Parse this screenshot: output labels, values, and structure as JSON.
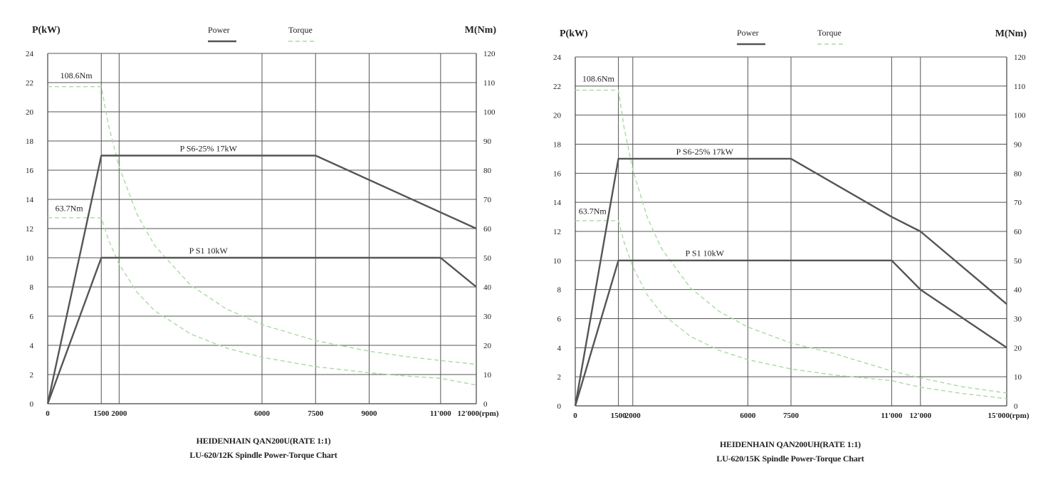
{
  "chart_data": [
    {
      "type": "line",
      "title": "HEIDENHAIN QAN200U(RATE 1:1)",
      "subtitle": "LU-620/12K Spindle Power-Torque Chart",
      "ylabel_left": "P(kW)",
      "ylabel_right": "M(Nm)",
      "xunit": "(rpm)",
      "legend": [
        {
          "name": "Power",
          "style": "solid",
          "color": "#555555"
        },
        {
          "name": "Torque",
          "style": "dashed",
          "color": "#a8dca0"
        }
      ],
      "legend_position": "top-center",
      "grid": true,
      "xlim": [
        0,
        12000
      ],
      "ylim_left": [
        0,
        24
      ],
      "ylim_right": [
        0,
        120
      ],
      "x_ticks": [
        0,
        1500,
        2000,
        6000,
        7500,
        9000,
        11000,
        12000
      ],
      "x_tick_labels": [
        "0",
        "1500",
        "2000",
        "6000",
        "7500",
        "9000",
        "11'000",
        "12'000"
      ],
      "y_left_ticks": [
        0,
        2,
        4,
        6,
        8,
        10,
        12,
        14,
        16,
        18,
        20,
        22,
        24
      ],
      "y_right_ticks": [
        0,
        10,
        20,
        30,
        40,
        50,
        60,
        70,
        80,
        90,
        100,
        110,
        120
      ],
      "power_series": [
        {
          "name": "P S6-25% 17kW",
          "x": [
            0,
            1500,
            7500,
            12000
          ],
          "y": [
            0,
            17,
            17,
            12
          ]
        },
        {
          "name": "P S1 10kW",
          "x": [
            0,
            1500,
            11000,
            12000
          ],
          "y": [
            0,
            10,
            10,
            8
          ]
        }
      ],
      "torque_series": [
        {
          "name": "108.6Nm",
          "x": [
            0,
            1500,
            1700,
            2000,
            2500,
            3000,
            4000,
            5000,
            6000,
            7500,
            9000,
            10000,
            11000,
            12000
          ],
          "y": [
            108.6,
            108.6,
            95.5,
            81.2,
            64.9,
            54.1,
            40.6,
            32.5,
            27.1,
            21.6,
            18,
            16.2,
            14.8,
            13.5
          ]
        },
        {
          "name": "63.7Nm",
          "x": [
            0,
            1500,
            1700,
            2000,
            2500,
            3000,
            4000,
            5000,
            6000,
            7500,
            9000,
            10000,
            11000,
            12000
          ],
          "y": [
            63.7,
            63.7,
            56.2,
            47.8,
            38.2,
            31.8,
            23.9,
            19.1,
            15.9,
            12.7,
            10.6,
            9.5,
            8.7,
            6.4
          ]
        }
      ],
      "annotations": [
        {
          "text": "P S6-25% 17kW",
          "x": 4500,
          "y": 17.3
        },
        {
          "text": "P S1 10kW",
          "x": 4500,
          "y": 10.3
        },
        {
          "text": "108.6Nm",
          "x": 800,
          "y": 22.3
        },
        {
          "text": "63.7Nm",
          "x": 600,
          "y": 13.2
        }
      ]
    },
    {
      "type": "line",
      "title": "HEIDENHAIN QAN200UH(RATE 1:1)",
      "subtitle": "LU-620/15K Spindle Power-Torque Chart",
      "ylabel_left": "P(kW)",
      "ylabel_right": "M(Nm)",
      "xunit": "(rpm)",
      "legend": [
        {
          "name": "Power",
          "style": "solid",
          "color": "#555555"
        },
        {
          "name": "Torque",
          "style": "dashed",
          "color": "#a8dca0"
        }
      ],
      "legend_position": "top-center",
      "grid": true,
      "xlim": [
        0,
        15000
      ],
      "ylim_left": [
        0,
        24
      ],
      "ylim_right": [
        0,
        120
      ],
      "x_ticks": [
        0,
        1500,
        2000,
        6000,
        7500,
        11000,
        12000,
        15000
      ],
      "x_tick_labels": [
        "0",
        "1500",
        "2000",
        "6000",
        "7500",
        "11'000",
        "12'000",
        "15'000"
      ],
      "y_left_ticks": [
        0,
        2,
        4,
        6,
        8,
        10,
        12,
        14,
        16,
        18,
        20,
        22,
        24
      ],
      "y_right_ticks": [
        0,
        10,
        20,
        30,
        40,
        50,
        60,
        70,
        80,
        90,
        100,
        110,
        120
      ],
      "power_series": [
        {
          "name": "P S6-25% 17kW",
          "x": [
            0,
            1500,
            7500,
            11000,
            12000,
            15000
          ],
          "y": [
            0,
            17,
            17,
            13,
            12,
            7
          ]
        },
        {
          "name": "P S1 10kW",
          "x": [
            0,
            1500,
            11000,
            12000,
            15000
          ],
          "y": [
            0,
            10,
            10,
            8,
            4
          ]
        }
      ],
      "torque_series": [
        {
          "name": "108.6Nm",
          "x": [
            0,
            1500,
            1700,
            2000,
            2500,
            3000,
            4000,
            5000,
            6000,
            7500,
            9000,
            11000,
            12000,
            13500,
            15000
          ],
          "y": [
            108.6,
            108.6,
            95.5,
            81.2,
            64.9,
            54.1,
            40.6,
            32.5,
            27.1,
            21.6,
            18,
            12,
            9.6,
            6.5,
            4.4
          ]
        },
        {
          "name": "63.7Nm",
          "x": [
            0,
            1500,
            1700,
            2000,
            2500,
            3000,
            4000,
            5000,
            6000,
            7500,
            9000,
            11000,
            12000,
            13500,
            15000
          ],
          "y": [
            63.7,
            63.7,
            56.2,
            47.8,
            38.2,
            31.8,
            23.9,
            19.1,
            15.9,
            12.7,
            10.6,
            8.7,
            6.4,
            4.2,
            2.5
          ]
        }
      ],
      "annotations": [
        {
          "text": "P S6-25% 17kW",
          "x": 4500,
          "y": 17.3
        },
        {
          "text": "P S1 10kW",
          "x": 4500,
          "y": 10.3
        },
        {
          "text": "108.6Nm",
          "x": 800,
          "y": 22.3
        },
        {
          "text": "63.7Nm",
          "x": 600,
          "y": 13.2
        }
      ]
    }
  ]
}
